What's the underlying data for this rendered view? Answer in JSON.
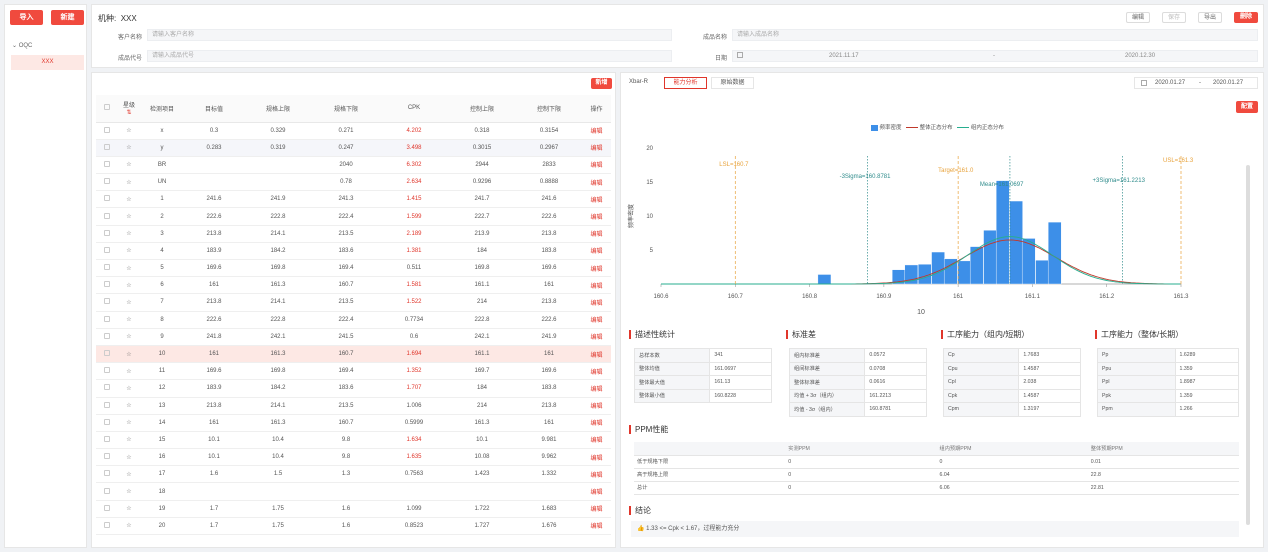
{
  "toolbar": {
    "import": "导入",
    "new": "新建"
  },
  "tree": {
    "root": "OQC",
    "child": "XXX"
  },
  "header": {
    "machine_label": "机种:",
    "machine_value": "XXX",
    "buttons": {
      "edit": "编辑",
      "save": "保存",
      "export": "导出",
      "delete": "删除"
    },
    "customer_label": "客户名称",
    "customer_placeholder": "请输入客户名称",
    "product_name_label": "成品名称",
    "product_name_placeholder": "请输入成品名称",
    "product_code_label": "成品代号",
    "product_code_placeholder": "请输入成品代号",
    "date_label": "日期",
    "date_start": "2021.11.17",
    "date_sep": "-",
    "date_end": "2020.12.30"
  },
  "table": {
    "new_button": "新增",
    "columns": {
      "star": "星级",
      "item": "检测项目",
      "target": "目标值",
      "usl": "规格上限",
      "lsl": "规格下限",
      "cpk": "CPK",
      "ucl": "控制上限",
      "lcl": "控制下限",
      "op": "操作"
    },
    "edit_label": "编辑",
    "rows": [
      {
        "item": "x",
        "target": "0.3",
        "usl": "0.329",
        "lsl": "0.271",
        "cpk": "4.202",
        "ucl": "0.318",
        "lcl": "0.3154",
        "cpk_red": true
      },
      {
        "item": "y",
        "target": "0.283",
        "usl": "0.319",
        "lsl": "0.247",
        "cpk": "3.498",
        "ucl": "0.3015",
        "lcl": "0.2967",
        "cpk_red": true
      },
      {
        "item": "BR",
        "target": "",
        "usl": "",
        "lsl": "2040",
        "cpk": "6.302",
        "ucl": "2944",
        "lcl": "2833",
        "cpk_red": true
      },
      {
        "item": "UN",
        "target": "",
        "usl": "",
        "lsl": "0.78",
        "cpk": "2.634",
        "ucl": "0.9296",
        "lcl": "0.8888",
        "cpk_red": true
      },
      {
        "item": "1",
        "target": "241.6",
        "usl": "241.9",
        "lsl": "241.3",
        "cpk": "1.415",
        "ucl": "241.7",
        "lcl": "241.6",
        "cpk_red": true
      },
      {
        "item": "2",
        "target": "222.6",
        "usl": "222.8",
        "lsl": "222.4",
        "cpk": "1.599",
        "ucl": "222.7",
        "lcl": "222.6",
        "cpk_red": true
      },
      {
        "item": "3",
        "target": "213.8",
        "usl": "214.1",
        "lsl": "213.5",
        "cpk": "2.189",
        "ucl": "213.9",
        "lcl": "213.8",
        "cpk_red": true
      },
      {
        "item": "4",
        "target": "183.9",
        "usl": "184.2",
        "lsl": "183.6",
        "cpk": "1.381",
        "ucl": "184",
        "lcl": "183.8",
        "cpk_red": true
      },
      {
        "item": "5",
        "target": "169.6",
        "usl": "169.8",
        "lsl": "169.4",
        "cpk": "0.511",
        "ucl": "169.8",
        "lcl": "169.6",
        "cpk_red": false
      },
      {
        "item": "6",
        "target": "161",
        "usl": "161.3",
        "lsl": "160.7",
        "cpk": "1.581",
        "ucl": "161.1",
        "lcl": "161",
        "cpk_red": true
      },
      {
        "item": "7",
        "target": "213.8",
        "usl": "214.1",
        "lsl": "213.5",
        "cpk": "1.522",
        "ucl": "214",
        "lcl": "213.8",
        "cpk_red": true
      },
      {
        "item": "8",
        "target": "222.6",
        "usl": "222.8",
        "lsl": "222.4",
        "cpk": "0.7734",
        "ucl": "222.8",
        "lcl": "222.6",
        "cpk_red": false
      },
      {
        "item": "9",
        "target": "241.8",
        "usl": "242.1",
        "lsl": "241.5",
        "cpk": "0.6",
        "ucl": "242.1",
        "lcl": "241.9",
        "cpk_red": false
      },
      {
        "item": "10",
        "target": "161",
        "usl": "161.3",
        "lsl": "160.7",
        "cpk": "1.694",
        "ucl": "161.1",
        "lcl": "161",
        "cpk_red": true,
        "selected": true
      },
      {
        "item": "11",
        "target": "169.6",
        "usl": "169.8",
        "lsl": "169.4",
        "cpk": "1.352",
        "ucl": "169.7",
        "lcl": "169.6",
        "cpk_red": true
      },
      {
        "item": "12",
        "target": "183.9",
        "usl": "184.2",
        "lsl": "183.6",
        "cpk": "1.707",
        "ucl": "184",
        "lcl": "183.8",
        "cpk_red": true
      },
      {
        "item": "13",
        "target": "213.8",
        "usl": "214.1",
        "lsl": "213.5",
        "cpk": "1.006",
        "ucl": "214",
        "lcl": "213.8",
        "cpk_red": false
      },
      {
        "item": "14",
        "target": "161",
        "usl": "161.3",
        "lsl": "160.7",
        "cpk": "0.5999",
        "ucl": "161.3",
        "lcl": "161",
        "cpk_red": false
      },
      {
        "item": "15",
        "target": "10.1",
        "usl": "10.4",
        "lsl": "9.8",
        "cpk": "1.634",
        "ucl": "10.1",
        "lcl": "9.981",
        "cpk_red": true
      },
      {
        "item": "16",
        "target": "10.1",
        "usl": "10.4",
        "lsl": "9.8",
        "cpk": "1.635",
        "ucl": "10.08",
        "lcl": "9.962",
        "cpk_red": true
      },
      {
        "item": "17",
        "target": "1.6",
        "usl": "1.5",
        "lsl": "1.3",
        "cpk": "0.7563",
        "ucl": "1.423",
        "lcl": "1.332",
        "cpk_red": false
      },
      {
        "item": "18",
        "target": "",
        "usl": "",
        "lsl": "",
        "cpk": "",
        "ucl": "",
        "lcl": "",
        "cpk_red": false
      },
      {
        "item": "19",
        "target": "1.7",
        "usl": "1.75",
        "lsl": "1.6",
        "cpk": "1.099",
        "ucl": "1.722",
        "lcl": "1.683",
        "cpk_red": false
      },
      {
        "item": "20",
        "target": "1.7",
        "usl": "1.75",
        "lsl": "1.6",
        "cpk": "0.8523",
        "ucl": "1.727",
        "lcl": "1.676",
        "cpk_red": false
      }
    ]
  },
  "right": {
    "tabs": [
      "Xbar-R",
      "能力分析",
      "原始数据"
    ],
    "date_start": "2020.01.27",
    "date_sep": "-",
    "date_end": "2020.01.27",
    "config_button": "配置",
    "legend": [
      "频率密度",
      "整体正态分布",
      "组内正态分布"
    ],
    "ylabel": "频率密度",
    "xlabel": "10",
    "annotations": {
      "lsl": "LSL=160.7",
      "usl": "USL=161.3",
      "target": "Target=161.0",
      "mean": "Mean=161.0697",
      "m3s": "-3Sigma=160.8781",
      "p3s": "+3Sigma=161.2213"
    },
    "stats": {
      "desc_title": "描述性统计",
      "desc": [
        [
          "总样本数",
          "341"
        ],
        [
          "整体均值",
          "161.0697"
        ],
        [
          "整体最大值",
          "161.13"
        ],
        [
          "整体最小值",
          "160.8228"
        ]
      ],
      "std_title": "标准差",
      "std": [
        [
          "组内标准差",
          "0.0572"
        ],
        [
          "组间标准差",
          "0.0708"
        ],
        [
          "整体标准差",
          "0.0616"
        ],
        [
          "均值 + 3σ（组内）",
          "161.2213"
        ],
        [
          "均值 - 3σ（组内）",
          "160.8781"
        ]
      ],
      "cap_short_title": "工序能力（组内/短期）",
      "cap_short": [
        [
          "Cp",
          "1.7683"
        ],
        [
          "Cpu",
          "1.4587"
        ],
        [
          "Cpl",
          "2.038"
        ],
        [
          "Cpk",
          "1.4587"
        ],
        [
          "Cpm",
          "1.3197"
        ]
      ],
      "cap_long_title": "工序能力（整体/长期）",
      "cap_long": [
        [
          "Pp",
          "1.6289"
        ],
        [
          "Ppu",
          "1.359"
        ],
        [
          "Ppl",
          "1.8987"
        ],
        [
          "Ppk",
          "1.359"
        ],
        [
          "Ppm",
          "1.266"
        ]
      ]
    },
    "ppm": {
      "title": "PPM性能",
      "headers": [
        "",
        "实测PPM",
        "组内预期PPM",
        "整体预期PPM"
      ],
      "rows": [
        [
          "低于规格下限",
          "0",
          "0",
          "0.01"
        ],
        [
          "高于规格上限",
          "0",
          "6.04",
          "22.8"
        ],
        [
          "总计",
          "0",
          "6.06",
          "22.81"
        ]
      ]
    },
    "conclusion": {
      "title": "结论",
      "text": "1.33 <= Cpk < 1.67，过程能力充分"
    }
  },
  "colors": {
    "accent": "#f04a3e",
    "bar": "#3d8fe8",
    "overall": "#c0392b",
    "within": "#27ae8f",
    "limit": "#e8a23a",
    "sigma": "#2e8b8b"
  },
  "chart_data": {
    "type": "bar",
    "xlabel": "10",
    "ylabel": "频率密度",
    "xlim": [
      160.6,
      161.3
    ],
    "ylim": [
      0,
      20
    ],
    "xticks": [
      160.6,
      160.7,
      160.8,
      160.9,
      161,
      161.1,
      161.2,
      161.3
    ],
    "yticks": [
      0,
      5,
      10,
      15,
      20
    ],
    "bin_width": 0.0176,
    "bins": [
      {
        "x": 160.82,
        "density": 1.4
      },
      {
        "x": 160.92,
        "density": 2.1
      },
      {
        "x": 160.937,
        "density": 2.8
      },
      {
        "x": 160.955,
        "density": 2.9
      },
      {
        "x": 160.973,
        "density": 4.7
      },
      {
        "x": 160.99,
        "density": 3.7
      },
      {
        "x": 161.008,
        "density": 3.4
      },
      {
        "x": 161.025,
        "density": 5.5
      },
      {
        "x": 161.043,
        "density": 7.9
      },
      {
        "x": 161.06,
        "density": 15.2
      },
      {
        "x": 161.078,
        "density": 12.2
      },
      {
        "x": 161.095,
        "density": 6.7
      },
      {
        "x": 161.113,
        "density": 3.5
      },
      {
        "x": 161.13,
        "density": 9.1
      }
    ],
    "series": [
      {
        "name": "整体正态分布",
        "mean": 161.0697,
        "sigma": 0.0616
      },
      {
        "name": "组内正态分布",
        "mean": 161.0697,
        "sigma": 0.0572
      }
    ],
    "lines": {
      "lsl": 160.7,
      "usl": 161.3,
      "target": 161.0,
      "mean": 161.0697,
      "minus3sigma": 160.8781,
      "plus3sigma": 161.2213
    }
  }
}
